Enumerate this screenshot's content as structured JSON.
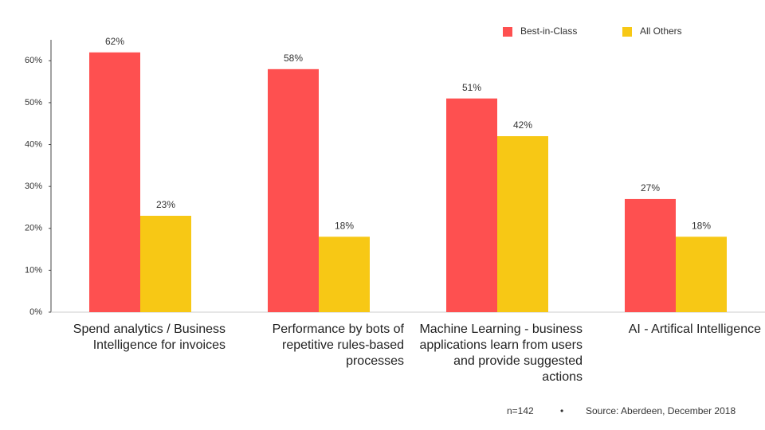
{
  "chart_data": {
    "type": "bar",
    "categories": [
      "Spend analytics / Business Intelligence for invoices",
      "Performance by bots of repetitive rules-based processes",
      "Machine Learning - business applications learn from users and provide suggested actions",
      "AI - Artifical Intelligence"
    ],
    "series": [
      {
        "name": "Best-in-Class",
        "color": "#fe5050",
        "values": [
          62,
          58,
          51,
          27
        ],
        "value_labels": [
          "62%",
          "58%",
          "51%",
          "27%"
        ]
      },
      {
        "name": "All Others",
        "color": "#f7c815",
        "values": [
          23,
          18,
          42,
          18
        ],
        "value_labels": [
          "23%",
          "18%",
          "42%",
          "18%"
        ]
      }
    ],
    "ylim": [
      0,
      65
    ],
    "yticks": [
      {
        "value": 0,
        "label": "0%"
      },
      {
        "value": 10,
        "label": "10%"
      },
      {
        "value": 20,
        "label": "20%"
      },
      {
        "value": 30,
        "label": "30%"
      },
      {
        "value": 40,
        "label": "40%"
      },
      {
        "value": 50,
        "label": "50%"
      },
      {
        "value": 60,
        "label": "60%"
      }
    ],
    "grid": false,
    "legend": "top-right",
    "footer": [
      "n=142",
      "•",
      "Source: Aberdeen, December 2018"
    ]
  }
}
